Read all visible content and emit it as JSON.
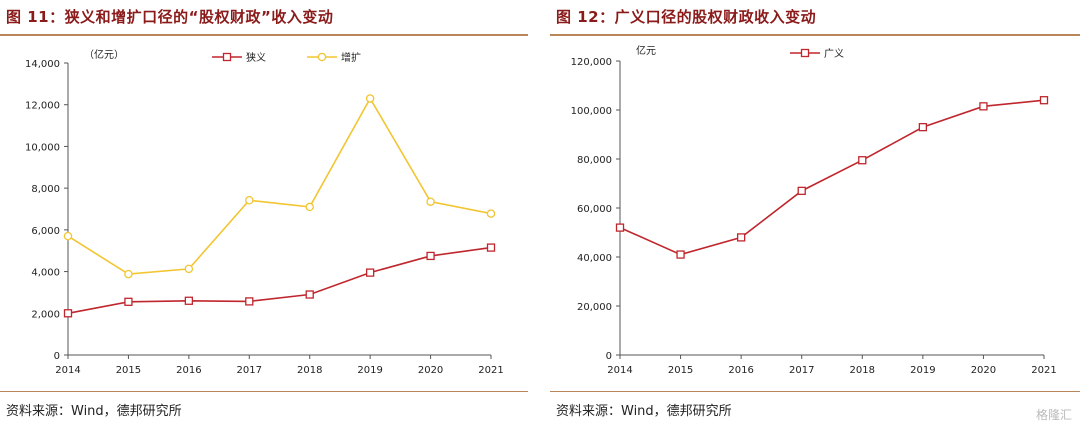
{
  "panels": {
    "left": {
      "title": "图 11：狭义和增扩口径的“股权财政”收入变动",
      "source": "资料来源：Wind，德邦研究所"
    },
    "right": {
      "title": "图 12：广义口径的股权财政收入变动",
      "source": "资料来源：Wind，德邦研究所"
    }
  },
  "watermark": "格隆汇",
  "chart_data": [
    {
      "type": "line",
      "unit_label": "（亿元）",
      "x": [
        "2014",
        "2015",
        "2016",
        "2017",
        "2018",
        "2019",
        "2020",
        "2021"
      ],
      "ylim": [
        0,
        14000
      ],
      "yticks": [
        0,
        2000,
        4000,
        6000,
        8000,
        10000,
        12000,
        14000
      ],
      "ytick_labels": [
        "0",
        "2,000",
        "4,000",
        "6,000",
        "8,000",
        "10,000",
        "12,000",
        "14,000"
      ],
      "legend_position": "top-center",
      "grid": false,
      "series": [
        {
          "name": "狭义",
          "color": "#c0262d",
          "marker": "square",
          "values": [
            2000,
            2550,
            2600,
            2570,
            2900,
            3950,
            4750,
            5150
          ]
        },
        {
          "name": "增扩",
          "color": "#f2c531",
          "marker": "circle",
          "values": [
            5700,
            3880,
            4130,
            7420,
            7100,
            12300,
            7350,
            6780
          ]
        }
      ]
    },
    {
      "type": "line",
      "unit_label": "亿元",
      "x": [
        "2014",
        "2015",
        "2016",
        "2017",
        "2018",
        "2019",
        "2020",
        "2021"
      ],
      "ylim": [
        0,
        120000
      ],
      "yticks": [
        0,
        20000,
        40000,
        60000,
        80000,
        100000,
        120000
      ],
      "ytick_labels": [
        "0",
        "20,000",
        "40,000",
        "60,000",
        "80,000",
        "100,000",
        "120,000"
      ],
      "legend_position": "top-center",
      "grid": false,
      "series": [
        {
          "name": "广义",
          "color": "#c0262d",
          "marker": "square",
          "values": [
            52000,
            41000,
            48000,
            67000,
            79500,
            93000,
            101500,
            104000
          ]
        }
      ]
    }
  ]
}
